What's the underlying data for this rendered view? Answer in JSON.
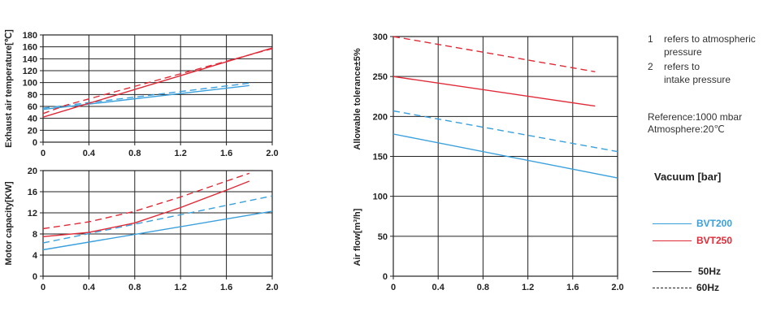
{
  "colors": {
    "bvt200": "#3aa0dc",
    "bvt250": "#e02a38",
    "grid": "#222222"
  },
  "chart_data": [
    {
      "type": "line",
      "ylabel": "Exhaust air temperature[℃]",
      "xlim": [
        0,
        2.0
      ],
      "ylim": [
        0,
        180
      ],
      "xticks": [
        "0",
        "0.4",
        "0.8",
        "1.2",
        "1.6",
        "2.0"
      ],
      "yticks": [
        "0",
        "20",
        "40",
        "60",
        "80",
        "100",
        "120",
        "140",
        "160",
        "180"
      ],
      "series": [
        {
          "name": "BVT200",
          "style": "solid",
          "x": [
            0,
            1.8
          ],
          "y": [
            55,
            95
          ]
        },
        {
          "name": "BVT200",
          "style": "dashed",
          "x": [
            0,
            1.8
          ],
          "y": [
            57,
            99
          ]
        },
        {
          "name": "BVT250",
          "style": "solid",
          "x": [
            0,
            2.0
          ],
          "y": [
            42,
            158
          ]
        },
        {
          "name": "BVT250",
          "style": "dashed",
          "x": [
            0,
            0.2,
            2.0
          ],
          "y": [
            48,
            62,
            157
          ]
        }
      ]
    },
    {
      "type": "line",
      "ylabel": "Motor capacity[KW]",
      "xlim": [
        0,
        2.0
      ],
      "ylim": [
        0,
        20
      ],
      "xticks": [
        "0",
        "0.4",
        "0.8",
        "1.2",
        "1.6",
        "2.0"
      ],
      "yticks": [
        "0",
        "4",
        "8",
        "12",
        "16",
        "20"
      ],
      "series": [
        {
          "name": "BVT200",
          "style": "solid",
          "x": [
            0,
            2.0
          ],
          "y": [
            5,
            12.3
          ]
        },
        {
          "name": "BVT200",
          "style": "dashed",
          "x": [
            0,
            2.0
          ],
          "y": [
            6.3,
            15.2
          ]
        },
        {
          "name": "BVT250",
          "style": "solid",
          "x": [
            0,
            0.4,
            0.8,
            1.2,
            1.6,
            1.8
          ],
          "y": [
            7.5,
            8.3,
            10.1,
            13,
            16.3,
            18
          ]
        },
        {
          "name": "BVT250",
          "style": "dashed",
          "x": [
            0,
            0.4,
            0.8,
            1.2,
            1.6,
            1.8
          ],
          "y": [
            9,
            10.3,
            12.3,
            15,
            18,
            19.5
          ]
        }
      ]
    },
    {
      "type": "line",
      "ylabel": "Air flow[m³/h]    Allowable tolerance±5%",
      "xlim": [
        0,
        2.0
      ],
      "ylim": [
        0,
        300
      ],
      "xticks": [
        "0",
        "0.4",
        "0.8",
        "1.2",
        "1.6",
        "2.0"
      ],
      "yticks": [
        "0",
        "50",
        "100",
        "150",
        "200",
        "250",
        "300"
      ],
      "series": [
        {
          "name": "BVT200",
          "style": "solid",
          "x": [
            0,
            2.0
          ],
          "y": [
            178,
            123
          ]
        },
        {
          "name": "BVT200",
          "style": "dashed",
          "x": [
            0,
            2.0
          ],
          "y": [
            207,
            156
          ]
        },
        {
          "name": "BVT250",
          "style": "solid",
          "x": [
            0,
            1.8
          ],
          "y": [
            250,
            213
          ]
        },
        {
          "name": "BVT250",
          "style": "dashed",
          "x": [
            0,
            1.8
          ],
          "y": [
            300,
            256
          ]
        }
      ]
    }
  ],
  "notes": {
    "n1_number": "1",
    "n1_line1": "refers to atmospheric",
    "n1_line2": "pressure",
    "n2_number": "2",
    "n2_line1": "refers to",
    "n2_line2": "intake pressure",
    "reference": "Reference:1000 mbar",
    "atmosphere": "Atmosphere:20℃"
  },
  "legend": {
    "title": "Vacuum [bar]",
    "bvt200": "BVT200",
    "bvt250": "BVT250",
    "hz50": "50Hz",
    "hz60": "60Hz"
  }
}
